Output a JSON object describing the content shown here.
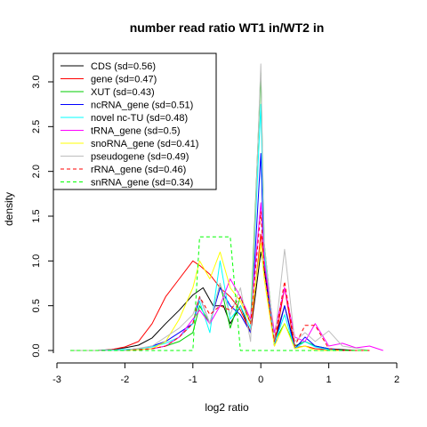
{
  "chart_data": {
    "type": "line",
    "title": "number read ratio WT1 in/WT2 in",
    "xlabel": "log2 ratio",
    "ylabel": "density",
    "xlim": [
      -3,
      2
    ],
    "ylim": [
      0,
      3.25
    ],
    "x_ticks": [
      "-3",
      "-2",
      "-1",
      "0",
      "1",
      "2"
    ],
    "y_ticks": [
      "0.0",
      "0.5",
      "1.0",
      "1.5",
      "2.0",
      "2.5",
      "3.0"
    ],
    "x_tick_values": [
      -3,
      -2,
      -1,
      0,
      1,
      2
    ],
    "y_tick_values": [
      0,
      0.5,
      1,
      1.5,
      2,
      2.5,
      3
    ],
    "legend_position": "top-left",
    "grid": false,
    "series": [
      {
        "name": "CDS (sd=0.56)",
        "color": "#000000",
        "dash": "solid",
        "x": [
          -2.8,
          -2.6,
          -2.4,
          -2.2,
          -2.0,
          -1.8,
          -1.6,
          -1.4,
          -1.2,
          -1.0,
          -0.85,
          -0.7,
          -0.55,
          -0.45,
          -0.3,
          -0.15,
          0.0,
          0.05,
          0.2,
          0.35,
          0.5,
          0.65,
          0.8,
          1.0,
          1.2,
          1.4,
          1.6
        ],
        "y": [
          0.0,
          0.0,
          0.0,
          0.01,
          0.03,
          0.06,
          0.14,
          0.3,
          0.45,
          0.62,
          0.7,
          0.5,
          0.5,
          0.3,
          0.5,
          0.2,
          1.1,
          0.9,
          0.1,
          0.5,
          0.05,
          0.1,
          0.05,
          0.02,
          0.01,
          0.0,
          0.0
        ]
      },
      {
        "name": "gene (sd=0.47)",
        "color": "#ff0000",
        "dash": "solid",
        "x": [
          -2.8,
          -2.6,
          -2.4,
          -2.2,
          -2.0,
          -1.8,
          -1.6,
          -1.4,
          -1.2,
          -1.0,
          -0.9,
          -0.75,
          -0.6,
          -0.45,
          -0.3,
          -0.15,
          0.0,
          0.05,
          0.2,
          0.35,
          0.5,
          0.65,
          0.8,
          1.0,
          1.2,
          1.4,
          1.6
        ],
        "y": [
          0.0,
          0.0,
          0.0,
          0.01,
          0.04,
          0.1,
          0.3,
          0.6,
          0.8,
          1.0,
          0.95,
          0.85,
          0.7,
          0.6,
          0.45,
          0.2,
          1.3,
          1.0,
          0.05,
          0.7,
          0.03,
          0.05,
          0.02,
          0.01,
          0.0,
          0.0,
          0.0
        ]
      },
      {
        "name": "XUT (sd=0.43)",
        "color": "#00cc00",
        "dash": "solid",
        "x": [
          -2.8,
          -2.4,
          -2.0,
          -1.6,
          -1.4,
          -1.2,
          -1.0,
          -0.9,
          -0.75,
          -0.6,
          -0.45,
          -0.3,
          -0.15,
          0.0,
          0.05,
          0.2,
          0.35,
          0.5,
          0.65,
          0.8,
          1.0,
          1.2,
          1.6
        ],
        "y": [
          0.0,
          0.0,
          0.0,
          0.02,
          0.05,
          0.1,
          0.2,
          0.5,
          0.3,
          0.75,
          0.25,
          0.6,
          0.3,
          3.1,
          1.2,
          0.1,
          0.3,
          0.05,
          0.1,
          0.05,
          0.02,
          0.0,
          0.0
        ]
      },
      {
        "name": "ncRNA_gene (sd=0.51)",
        "color": "#0000ff",
        "dash": "solid",
        "x": [
          -2.8,
          -2.4,
          -2.0,
          -1.8,
          -1.6,
          -1.4,
          -1.2,
          -1.0,
          -0.9,
          -0.75,
          -0.6,
          -0.45,
          -0.3,
          -0.15,
          0.0,
          0.05,
          0.2,
          0.35,
          0.5,
          0.65,
          0.8,
          1.0,
          1.2,
          1.6
        ],
        "y": [
          0.0,
          0.0,
          0.01,
          0.02,
          0.05,
          0.1,
          0.2,
          0.3,
          0.6,
          0.3,
          0.7,
          0.5,
          0.4,
          0.2,
          2.2,
          1.0,
          0.05,
          0.5,
          0.02,
          0.15,
          0.05,
          0.02,
          0.0,
          0.0
        ]
      },
      {
        "name": "novel nc-TU (sd=0.48)",
        "color": "#00ffff",
        "dash": "solid",
        "x": [
          -2.8,
          -2.4,
          -2.0,
          -1.8,
          -1.6,
          -1.4,
          -1.2,
          -1.0,
          -0.9,
          -0.75,
          -0.6,
          -0.45,
          -0.3,
          -0.15,
          0.0,
          0.05,
          0.2,
          0.35,
          0.5,
          0.65,
          0.8,
          1.0,
          1.2,
          1.6
        ],
        "y": [
          0.0,
          0.0,
          0.01,
          0.02,
          0.04,
          0.08,
          0.15,
          0.3,
          0.55,
          0.2,
          1.0,
          0.35,
          0.5,
          0.25,
          2.75,
          1.1,
          0.08,
          0.4,
          0.02,
          0.1,
          0.04,
          0.01,
          0.0,
          0.0
        ]
      },
      {
        "name": "tRNA_gene (sd=0.5)",
        "color": "#ff00ff",
        "dash": "solid",
        "x": [
          -2.8,
          -2.4,
          -2.0,
          -1.6,
          -1.4,
          -1.2,
          -1.0,
          -0.9,
          -0.75,
          -0.6,
          -0.45,
          -0.3,
          -0.15,
          0.0,
          0.05,
          0.2,
          0.35,
          0.5,
          0.65,
          0.8,
          1.0,
          1.2,
          1.4,
          1.6,
          1.8
        ],
        "y": [
          0.0,
          0.0,
          0.0,
          0.02,
          0.05,
          0.15,
          0.35,
          0.45,
          0.3,
          0.5,
          0.8,
          0.6,
          0.35,
          1.65,
          1.0,
          0.2,
          0.7,
          0.15,
          0.1,
          0.3,
          0.05,
          0.08,
          0.03,
          0.05,
          0.0
        ]
      },
      {
        "name": "snoRNA_gene (sd=0.41)",
        "color": "#ffff00",
        "dash": "solid",
        "x": [
          -2.8,
          -2.4,
          -2.0,
          -1.6,
          -1.4,
          -1.2,
          -1.0,
          -0.9,
          -0.75,
          -0.6,
          -0.45,
          -0.3,
          -0.15,
          0.0,
          0.05,
          0.2,
          0.35,
          0.5,
          0.65,
          0.8,
          1.0,
          1.2,
          1.6
        ],
        "y": [
          0.0,
          0.0,
          0.0,
          0.02,
          0.1,
          0.35,
          0.7,
          1.0,
          0.8,
          1.1,
          0.7,
          0.55,
          0.3,
          1.2,
          0.8,
          0.05,
          0.3,
          0.02,
          0.05,
          0.0,
          0.0,
          0.0,
          0.0
        ]
      },
      {
        "name": "pseudogene (sd=0.49)",
        "color": "#bebebe",
        "dash": "solid",
        "x": [
          -2.8,
          -2.4,
          -2.0,
          -1.6,
          -1.4,
          -1.2,
          -1.0,
          -0.9,
          -0.75,
          -0.6,
          -0.45,
          -0.3,
          -0.15,
          0.0,
          0.05,
          0.2,
          0.35,
          0.5,
          0.65,
          0.8,
          1.0,
          1.2,
          1.6
        ],
        "y": [
          0.0,
          0.0,
          0.0,
          0.05,
          0.15,
          0.25,
          0.4,
          0.6,
          0.3,
          0.75,
          0.4,
          0.7,
          0.1,
          3.2,
          1.2,
          0.1,
          1.13,
          0.1,
          0.2,
          0.1,
          0.22,
          0.05,
          0.0
        ]
      },
      {
        "name": "rRNA_gene (sd=0.46)",
        "color": "#ff0000",
        "dash": "dashed",
        "x": [
          -2.8,
          -2.4,
          -2.0,
          -1.6,
          -1.4,
          -1.2,
          -1.0,
          -0.9,
          -0.75,
          -0.6,
          -0.45,
          -0.3,
          -0.15,
          0.0,
          0.05,
          0.2,
          0.35,
          0.5,
          0.65,
          0.8,
          1.0,
          1.2,
          1.6
        ],
        "y": [
          0.0,
          0.0,
          0.0,
          0.02,
          0.05,
          0.15,
          0.3,
          0.6,
          0.4,
          0.5,
          0.45,
          0.6,
          0.3,
          1.55,
          0.9,
          0.1,
          0.77,
          0.05,
          0.28,
          0.28,
          0.02,
          0.0,
          0.0
        ]
      },
      {
        "name": "snRNA_gene (sd=0.34)",
        "color": "#00ff00",
        "dash": "dashed",
        "x": [
          -2.8,
          -2.0,
          -1.2,
          -1.0,
          -0.9,
          -0.75,
          -0.6,
          -0.45,
          -0.3,
          -0.15,
          0.0,
          0.05,
          0.2,
          0.35,
          0.5,
          0.8,
          1.2,
          1.6
        ],
        "y": [
          0.0,
          0.0,
          0.0,
          0.0,
          1.27,
          1.27,
          1.27,
          1.27,
          0.0,
          0.0,
          0.0,
          0.0,
          0.0,
          0.0,
          0.0,
          0.0,
          0.0,
          0.0
        ]
      }
    ]
  }
}
